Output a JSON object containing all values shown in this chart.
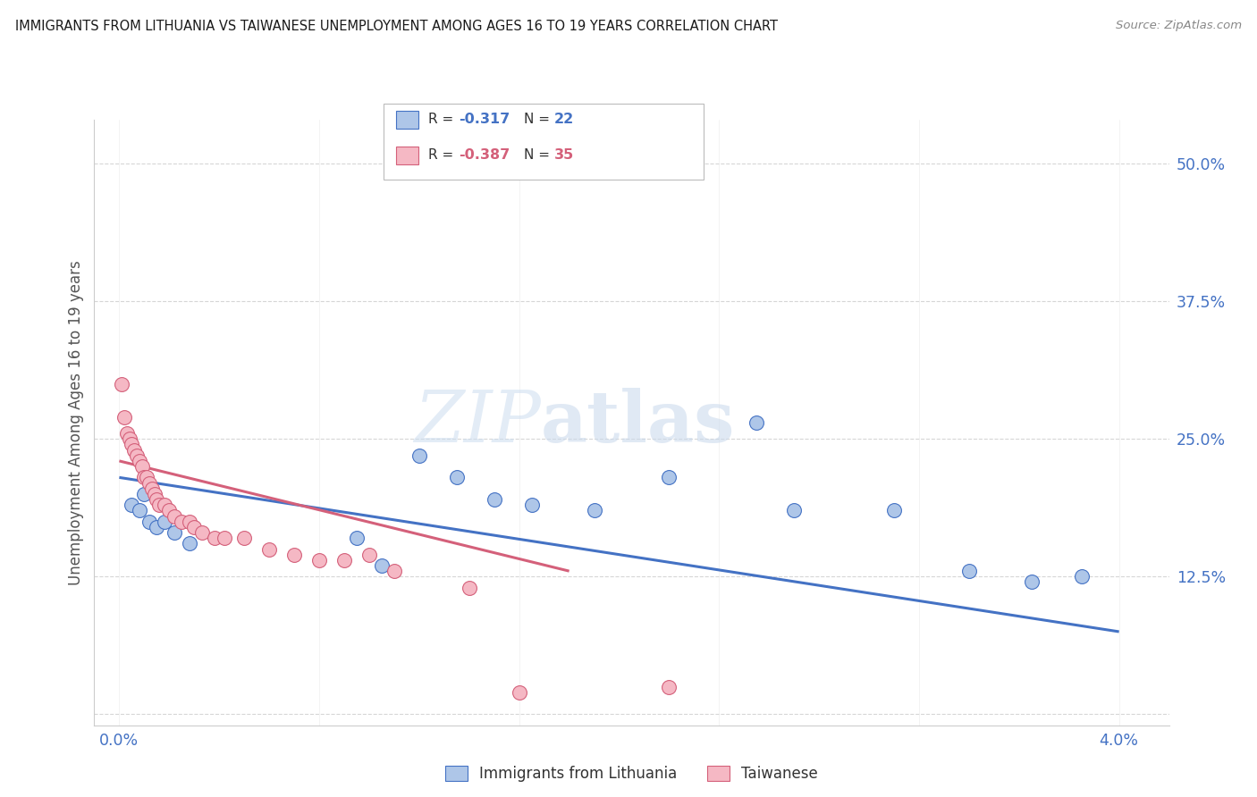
{
  "title": "IMMIGRANTS FROM LITHUANIA VS TAIWANESE UNEMPLOYMENT AMONG AGES 16 TO 19 YEARS CORRELATION CHART",
  "source": "Source: ZipAtlas.com",
  "ylabel": "Unemployment Among Ages 16 to 19 years",
  "yticks": [
    0.0,
    0.125,
    0.25,
    0.375,
    0.5
  ],
  "ytick_labels": [
    "",
    "12.5%",
    "25.0%",
    "37.5%",
    "50.0%"
  ],
  "xticks": [
    0.0,
    0.008,
    0.016,
    0.024,
    0.032,
    0.04
  ],
  "xtick_labels": [
    "0.0%",
    "",
    "",
    "",
    "",
    "4.0%"
  ],
  "xlim": [
    -0.001,
    0.042
  ],
  "ylim": [
    -0.01,
    0.54
  ],
  "watermark_zip": "ZIP",
  "watermark_atlas": "atlas",
  "series1_name": "Immigrants from Lithuania",
  "series1_color": "#aec6e8",
  "series1_edge_color": "#4472c4",
  "series1_line_color": "#4472c4",
  "series1_r": -0.317,
  "series1_n": 22,
  "series1_x": [
    0.0005,
    0.0008,
    0.001,
    0.0012,
    0.0015,
    0.0018,
    0.0022,
    0.0028,
    0.0095,
    0.0105,
    0.012,
    0.0135,
    0.015,
    0.0165,
    0.019,
    0.022,
    0.0255,
    0.027,
    0.031,
    0.034,
    0.0365,
    0.0385
  ],
  "series1_y": [
    0.19,
    0.185,
    0.2,
    0.175,
    0.17,
    0.175,
    0.165,
    0.155,
    0.16,
    0.135,
    0.235,
    0.215,
    0.195,
    0.19,
    0.185,
    0.215,
    0.265,
    0.185,
    0.185,
    0.13,
    0.12,
    0.125
  ],
  "series2_name": "Taiwanese",
  "series2_color": "#f5b8c4",
  "series2_edge_color": "#d4607a",
  "series2_line_color": "#d4607a",
  "series2_r": -0.387,
  "series2_n": 35,
  "series2_x": [
    0.0001,
    0.0002,
    0.0003,
    0.0004,
    0.0005,
    0.0006,
    0.0007,
    0.0008,
    0.0009,
    0.001,
    0.0011,
    0.0012,
    0.0013,
    0.0014,
    0.0015,
    0.0016,
    0.0018,
    0.002,
    0.0022,
    0.0025,
    0.0028,
    0.003,
    0.0033,
    0.0038,
    0.0042,
    0.005,
    0.006,
    0.007,
    0.008,
    0.009,
    0.01,
    0.011,
    0.014,
    0.016,
    0.022
  ],
  "series2_y": [
    0.3,
    0.27,
    0.255,
    0.25,
    0.245,
    0.24,
    0.235,
    0.23,
    0.225,
    0.215,
    0.215,
    0.21,
    0.205,
    0.2,
    0.195,
    0.19,
    0.19,
    0.185,
    0.18,
    0.175,
    0.175,
    0.17,
    0.165,
    0.16,
    0.16,
    0.16,
    0.15,
    0.145,
    0.14,
    0.14,
    0.145,
    0.13,
    0.115,
    0.02,
    0.025
  ],
  "series1_line_x0": 0.0,
  "series1_line_x1": 0.04,
  "series1_line_y0": 0.215,
  "series1_line_y1": 0.075,
  "series2_line_x0": 0.0,
  "series2_line_x1": 0.018,
  "series2_line_y0": 0.23,
  "series2_line_y1": 0.13,
  "background_color": "#ffffff",
  "grid_color": "#cccccc",
  "title_color": "#1a1a1a",
  "axis_label_color": "#4472c4",
  "legend_r_color1": "#4472c4",
  "legend_r_color2": "#d4607a"
}
